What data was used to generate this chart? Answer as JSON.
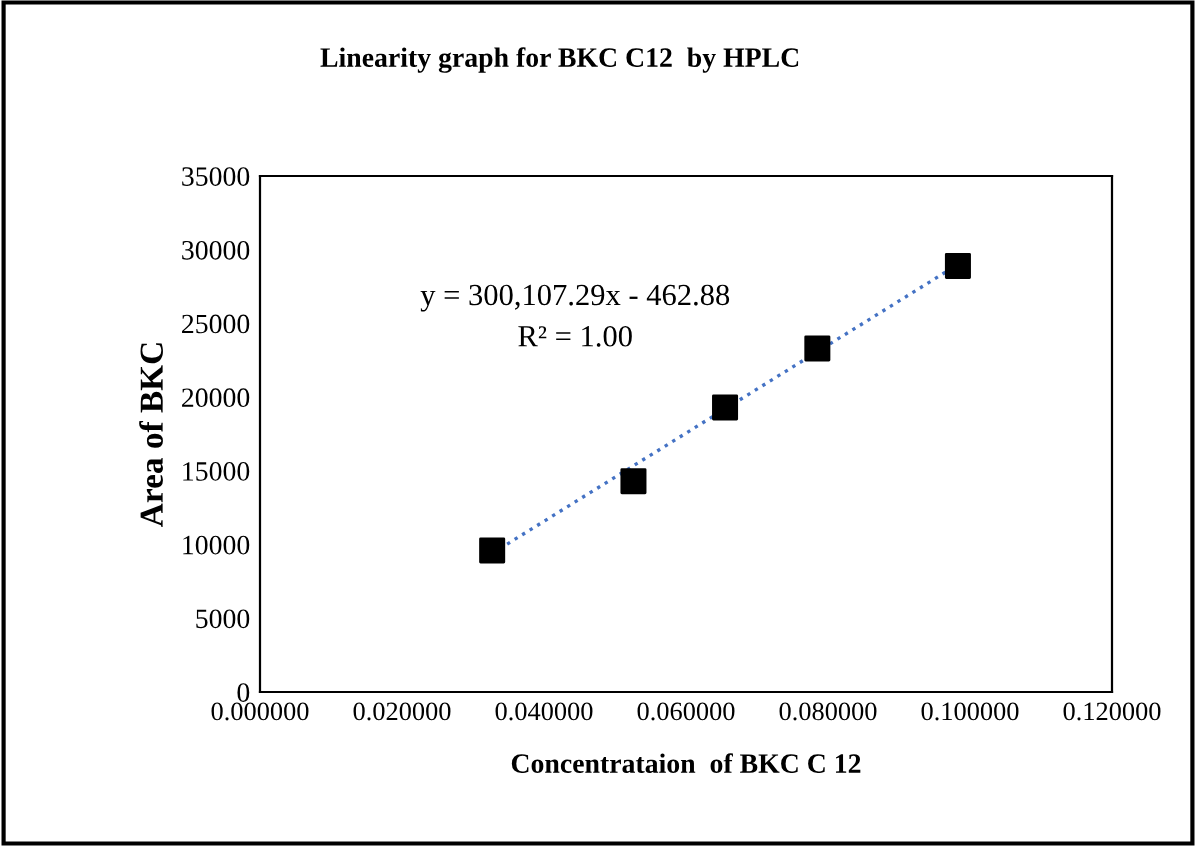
{
  "chart_data": {
    "type": "scatter",
    "title": "Linearity graph for BKC C12  by HPLC",
    "xlabel": "Concentrataion  of BKC C 12",
    "ylabel": "Area of BKC",
    "annotations": [
      "y = 300,107.29x - 462.88",
      "R² = 1.00"
    ],
    "series": [
      {
        "color": "#000000",
        "marker": "square",
        "x": [
          0.0327,
          0.0526,
          0.0655,
          0.0785,
          0.0983
        ],
        "values": [
          9600,
          14300,
          19300,
          23300,
          28900
        ]
      },
      {
        "type": "line",
        "color": "#4472c4",
        "line_style": "dotted",
        "x": [
          0.0327,
          0.0983
        ],
        "values": [
          9400,
          29000
        ]
      }
    ],
    "xlim": [
      0,
      0.12
    ],
    "xticks": [
      {
        "value": 0,
        "label": "0.000000"
      },
      {
        "value": 0.02,
        "label": "0.020000"
      },
      {
        "value": 0.04,
        "label": "0.040000"
      },
      {
        "value": 0.06,
        "label": "0.060000"
      },
      {
        "value": 0.08,
        "label": "0.080000"
      },
      {
        "value": 0.1,
        "label": "0.100000"
      },
      {
        "value": 0.12,
        "label": "0.120000"
      }
    ],
    "ylim": [
      0,
      35000
    ],
    "yticks": [
      0,
      5000,
      10000,
      15000,
      20000,
      25000,
      30000,
      35000
    ],
    "grid": false,
    "legend": false
  }
}
